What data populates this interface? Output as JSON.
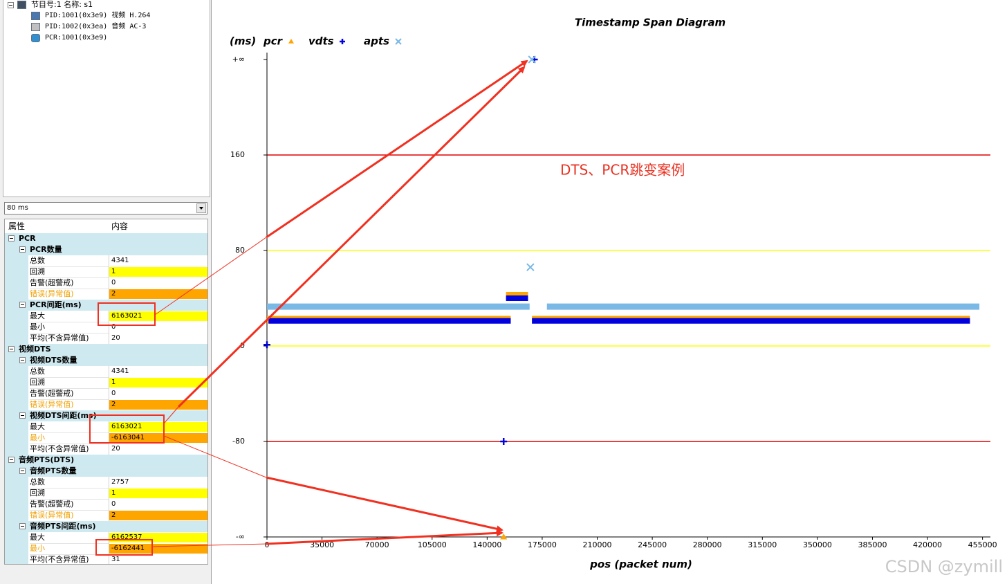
{
  "tree": {
    "items": [
      "节目号:1 名称: s1",
      "PID:1001(0x3e9) 视频 H.264",
      "PID:1002(0x3ea) 音频 AC-3",
      "PCR:1001(0x3e9)"
    ]
  },
  "dropdown": {
    "value": "80 ms"
  },
  "property_grid": {
    "headers": [
      "属性",
      "内容"
    ],
    "rows": [
      {
        "level": 0,
        "label": "PCR"
      },
      {
        "level": 1,
        "label": "PCR数量"
      },
      {
        "level": 2,
        "label": "总数",
        "value": "4341"
      },
      {
        "level": 2,
        "label": "回溯",
        "value": "1",
        "highlight": "#ffff00"
      },
      {
        "level": 2,
        "label": "告警(超警戒)",
        "value": "0"
      },
      {
        "level": 2,
        "label": "错误(异常值)",
        "value": "2",
        "highlight": "#ffa500",
        "label_color": "#f0a000"
      },
      {
        "level": 1,
        "label": "PCR间距(ms)"
      },
      {
        "level": 2,
        "label": "最大",
        "value": "6163021",
        "highlight": "#ffff00"
      },
      {
        "level": 2,
        "label": "最小",
        "value": "0"
      },
      {
        "level": 2,
        "label": "平均(不含异常值)",
        "value": "20"
      },
      {
        "level": 0,
        "label": "视频DTS"
      },
      {
        "level": 1,
        "label": "视频DTS数量"
      },
      {
        "level": 2,
        "label": "总数",
        "value": "4341"
      },
      {
        "level": 2,
        "label": "回溯",
        "value": "1",
        "highlight": "#ffff00"
      },
      {
        "level": 2,
        "label": "告警(超警戒)",
        "value": "0"
      },
      {
        "level": 2,
        "label": "错误(异常值)",
        "value": "2",
        "highlight": "#ffa500",
        "label_color": "#f0a000"
      },
      {
        "level": 1,
        "label": "视频DTS间距(ms)"
      },
      {
        "level": 2,
        "label": "最大",
        "value": "6163021",
        "highlight": "#ffff00"
      },
      {
        "level": 2,
        "label": "最小",
        "value": "-6163041",
        "highlight": "#ffa500",
        "label_color": "#f0a000"
      },
      {
        "level": 2,
        "label": "平均(不含异常值)",
        "value": "20"
      },
      {
        "level": 0,
        "label": "音频PTS(DTS)"
      },
      {
        "level": 1,
        "label": "音频PTS数量"
      },
      {
        "level": 2,
        "label": "总数",
        "value": "2757"
      },
      {
        "level": 2,
        "label": "回溯",
        "value": "1",
        "highlight": "#ffff00"
      },
      {
        "level": 2,
        "label": "告警(超警戒)",
        "value": "0"
      },
      {
        "level": 2,
        "label": "错误(异常值)",
        "value": "2",
        "highlight": "#ffa500",
        "label_color": "#f0a000"
      },
      {
        "level": 1,
        "label": "音频PTS间距(ms)"
      },
      {
        "level": 2,
        "label": "最大",
        "value": "6162537",
        "highlight": "#ffff00"
      },
      {
        "level": 2,
        "label": "最小",
        "value": "-6162441",
        "highlight": "#ffa500",
        "label_color": "#f0a000"
      },
      {
        "level": 2,
        "label": "平均(不含异常值)",
        "value": "31"
      }
    ]
  },
  "chart_data": {
    "type": "scatter",
    "title": "Timestamp Span Diagram",
    "x_label": "pos (packet num)",
    "y_label": "(ms)",
    "xlim": [
      0,
      460000
    ],
    "xticks": [
      0,
      35000,
      70000,
      105000,
      140000,
      175000,
      210000,
      245000,
      280000,
      315000,
      350000,
      385000,
      420000,
      455000
    ],
    "ylim": [
      -160,
      240
    ],
    "yticks": [
      {
        "value": -160,
        "label": "-∞"
      },
      -80,
      0,
      80,
      160,
      {
        "value": 240,
        "label": "+∞"
      }
    ],
    "ref_lines": [
      {
        "value": 160,
        "color": "#e00000"
      },
      {
        "value": 80,
        "color": "#ffff00"
      },
      {
        "value": 0,
        "color": "#ffff00"
      },
      {
        "value": -80,
        "color": "#e00000"
      }
    ],
    "series": [
      {
        "name": "pcr",
        "color": "#ffa500",
        "marker": "triangle",
        "x": [
          0,
          75000,
          155000,
          155000,
          152000,
          166000,
          166000,
          150500,
          150500,
          168500,
          300000,
          447000
        ],
        "values": [
          22,
          22,
          22,
          null,
          42,
          42,
          null,
          -160,
          null,
          22,
          22,
          22
        ]
      },
      {
        "name": "vdts",
        "color": "#0000e0",
        "marker": "plus",
        "x": [
          0,
          0,
          1000,
          75000,
          155000,
          155000,
          152000,
          166000,
          166000,
          150500,
          150500,
          170000,
          170000,
          168500,
          300000,
          447000
        ],
        "values": [
          1,
          null,
          21,
          21,
          21,
          null,
          40,
          40,
          null,
          -80,
          null,
          240,
          null,
          21,
          21,
          21
        ]
      },
      {
        "name": "apts",
        "color": "#7ab8e6",
        "marker": "cross",
        "x": [
          0,
          85000,
          167000,
          167000,
          167500,
          167500,
          168500,
          168500,
          178000,
          320000,
          453000
        ],
        "values": [
          33,
          33,
          33,
          null,
          66,
          null,
          240,
          null,
          33,
          33,
          33
        ]
      }
    ]
  },
  "annotation": "DTS、PCR跳变案例",
  "watermark": "CSDN @zymill"
}
